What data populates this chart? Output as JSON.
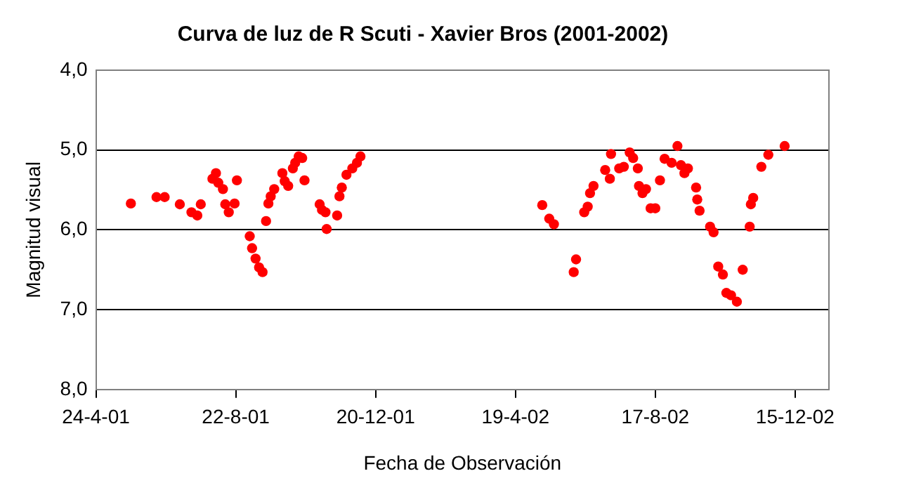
{
  "chart_data": {
    "type": "scatter",
    "title": "Curva de luz de R Scuti - Xavier Bros (2001-2002)",
    "xlabel": "Fecha de Observación",
    "ylabel": "Magnitud visual",
    "x": [
      "2001-05-24",
      "2001-06-15",
      "2001-06-22",
      "2001-07-05",
      "2001-07-15",
      "2001-07-20",
      "2001-07-23",
      "2001-08-02",
      "2001-08-05",
      "2001-08-07",
      "2001-08-11",
      "2001-08-13",
      "2001-08-16",
      "2001-08-21",
      "2001-08-23",
      "2001-09-03",
      "2001-09-05",
      "2001-09-08",
      "2001-09-11",
      "2001-09-14",
      "2001-09-17",
      "2001-09-19",
      "2001-09-21",
      "2001-09-24",
      "2001-10-01",
      "2001-10-03",
      "2001-10-06",
      "2001-10-10",
      "2001-10-12",
      "2001-10-15",
      "2001-10-18",
      "2001-10-20",
      "2001-11-02",
      "2001-11-04",
      "2001-11-07",
      "2001-11-08",
      "2001-11-17",
      "2001-11-19",
      "2001-11-21",
      "2001-11-25",
      "2001-11-30",
      "2001-12-04",
      "2001-12-07",
      "2002-05-12",
      "2002-05-18",
      "2002-05-22",
      "2002-06-08",
      "2002-06-10",
      "2002-06-17",
      "2002-06-20",
      "2002-06-22",
      "2002-06-25",
      "2002-07-05",
      "2002-07-09",
      "2002-07-10",
      "2002-07-17",
      "2002-07-21",
      "2002-07-26",
      "2002-07-29",
      "2002-08-02",
      "2002-08-03",
      "2002-08-06",
      "2002-08-09",
      "2002-08-13",
      "2002-08-17",
      "2002-08-21",
      "2002-08-25",
      "2002-08-31",
      "2002-09-05",
      "2002-09-08",
      "2002-09-11",
      "2002-09-14",
      "2002-09-21",
      "2002-09-22",
      "2002-09-24",
      "2002-10-03",
      "2002-10-06",
      "2002-10-10",
      "2002-10-14",
      "2002-10-17",
      "2002-10-21",
      "2002-10-26",
      "2002-10-31",
      "2002-11-06",
      "2002-11-07",
      "2002-11-09",
      "2002-11-16",
      "2002-11-22",
      "2002-12-06"
    ],
    "series": [
      {
        "color": "#ff0000",
        "values": [
          5.67,
          5.59,
          5.59,
          5.68,
          5.78,
          5.82,
          5.68,
          5.36,
          5.29,
          5.41,
          5.49,
          5.68,
          5.78,
          5.67,
          5.38,
          6.08,
          6.23,
          6.36,
          6.47,
          6.53,
          5.89,
          5.67,
          5.58,
          5.49,
          5.29,
          5.39,
          5.45,
          5.23,
          5.16,
          5.08,
          5.1,
          5.38,
          5.68,
          5.75,
          5.78,
          5.99,
          5.82,
          5.58,
          5.47,
          5.31,
          5.23,
          5.16,
          5.08,
          5.69,
          5.86,
          5.93,
          6.53,
          6.37,
          5.78,
          5.71,
          5.54,
          5.45,
          5.25,
          5.36,
          5.05,
          5.23,
          5.21,
          5.03,
          5.1,
          5.23,
          5.45,
          5.54,
          5.49,
          5.73,
          5.73,
          5.38,
          5.11,
          5.16,
          4.95,
          5.19,
          5.29,
          5.23,
          5.47,
          5.62,
          5.76,
          5.96,
          6.03,
          6.46,
          6.56,
          6.79,
          6.82,
          6.9,
          6.5,
          5.96,
          5.68,
          5.6,
          5.21,
          5.06,
          4.95
        ]
      }
    ],
    "xlim": [
      "2001-04-24",
      "2003-01-13"
    ],
    "xticks": [
      {
        "value": "2001-04-24",
        "label": "24-4-01"
      },
      {
        "value": "2001-08-22",
        "label": "22-8-01"
      },
      {
        "value": "2001-12-20",
        "label": "20-12-01"
      },
      {
        "value": "2002-04-19",
        "label": "19-4-02"
      },
      {
        "value": "2002-08-17",
        "label": "17-8-02"
      },
      {
        "value": "2002-12-15",
        "label": "15-12-02"
      }
    ],
    "ylim": [
      8,
      4
    ],
    "yticks": [
      {
        "value": 4,
        "label": "4,0"
      },
      {
        "value": 5,
        "label": "5,0"
      },
      {
        "value": 6,
        "label": "6,0"
      },
      {
        "value": 7,
        "label": "7,0"
      },
      {
        "value": 8,
        "label": "8,0"
      }
    ],
    "grid": "y",
    "marker": "circle",
    "legend": false
  }
}
